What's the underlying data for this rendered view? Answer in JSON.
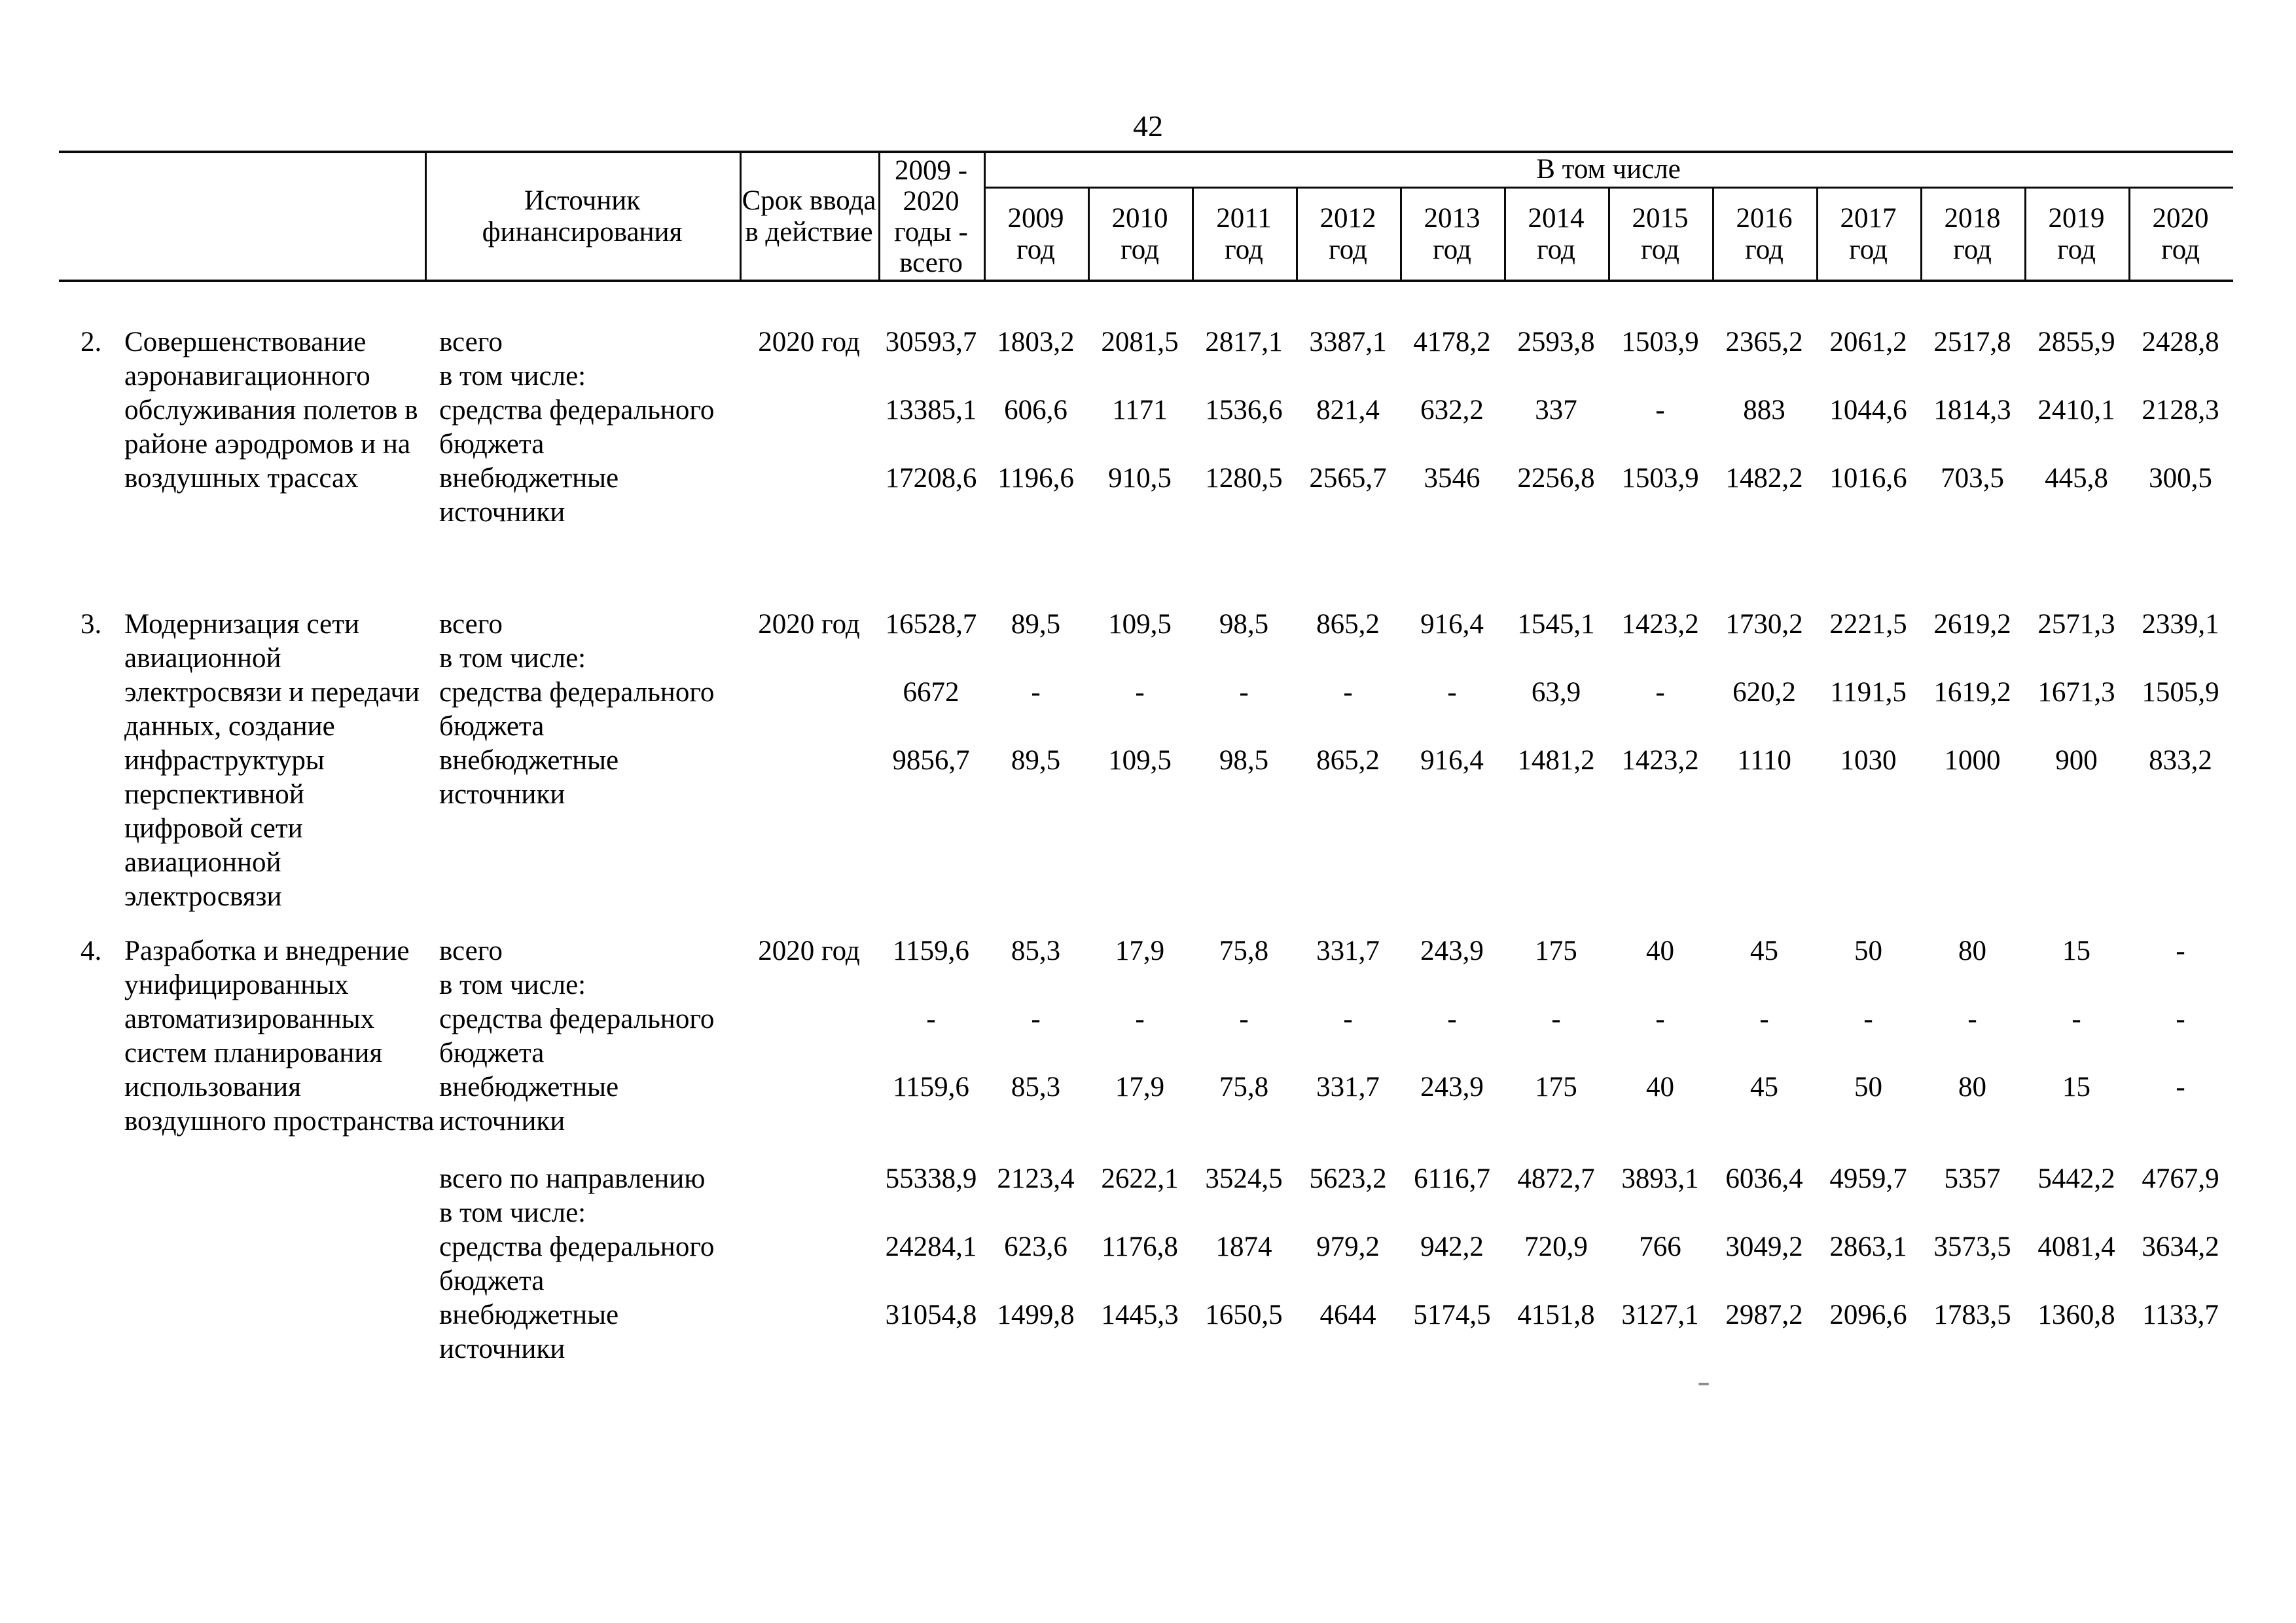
{
  "page": {
    "number": "42"
  },
  "header": {
    "source": "Источник\nфинансирования",
    "srok": "Срок ввода\nв действие",
    "total": "2009 -\n2020\nгоды -\nвсего",
    "including": "В том числе",
    "year_word": "год",
    "years": [
      "2009",
      "2010",
      "2011",
      "2012",
      "2013",
      "2014",
      "2015",
      "2016",
      "2017",
      "2018",
      "2019",
      "2020"
    ]
  },
  "body": {
    "groups": [
      {
        "lines": [
          [
            "2.",
            "Совершенствование",
            "всего",
            "2020 год",
            "30593,7",
            "1803,2",
            "2081,5",
            "2817,1",
            "3387,1",
            "4178,2",
            "2593,8",
            "1503,9",
            "2365,2",
            "2061,2",
            "2517,8",
            "2855,9",
            "2428,8"
          ],
          [
            "",
            "аэронавигационного",
            "в том числе:",
            "",
            "",
            "",
            "",
            "",
            "",
            "",
            "",
            "",
            "",
            "",
            "",
            "",
            ""
          ],
          [
            "",
            "обслуживания полетов в",
            "средства федерального",
            "",
            "13385,1",
            "606,6",
            "1171",
            "1536,6",
            "821,4",
            "632,2",
            "337",
            "-",
            "883",
            "1044,6",
            "1814,3",
            "2410,1",
            "2128,3"
          ],
          [
            "",
            "районе аэродромов и на",
            "бюджета",
            "",
            "",
            "",
            "",
            "",
            "",
            "",
            "",
            "",
            "",
            "",
            "",
            "",
            ""
          ],
          [
            "",
            "воздушных трассах",
            "внебюджетные",
            "",
            "17208,6",
            "1196,6",
            "910,5",
            "1280,5",
            "2565,7",
            "3546",
            "2256,8",
            "1503,9",
            "1482,2",
            "1016,6",
            "703,5",
            "445,8",
            "300,5"
          ],
          [
            "",
            "",
            "источники",
            "",
            "",
            "",
            "",
            "",
            "",
            "",
            "",
            "",
            "",
            "",
            "",
            "",
            ""
          ]
        ]
      },
      {
        "lines": [
          [
            "3.",
            "Модернизация сети",
            "всего",
            "2020 год",
            "16528,7",
            "89,5",
            "109,5",
            "98,5",
            "865,2",
            "916,4",
            "1545,1",
            "1423,2",
            "1730,2",
            "2221,5",
            "2619,2",
            "2571,3",
            "2339,1"
          ],
          [
            "",
            "авиационной",
            "в том числе:",
            "",
            "",
            "",
            "",
            "",
            "",
            "",
            "",
            "",
            "",
            "",
            "",
            "",
            ""
          ],
          [
            "",
            "электросвязи и передачи",
            "средства федерального",
            "",
            "6672",
            "-",
            "-",
            "-",
            "-",
            "-",
            "63,9",
            "-",
            "620,2",
            "1191,5",
            "1619,2",
            "1671,3",
            "1505,9"
          ],
          [
            "",
            "данных, создание",
            "бюджета",
            "",
            "",
            "",
            "",
            "",
            "",
            "",
            "",
            "",
            "",
            "",
            "",
            "",
            ""
          ],
          [
            "",
            "инфраструктуры",
            "внебюджетные",
            "",
            "9856,7",
            "89,5",
            "109,5",
            "98,5",
            "865,2",
            "916,4",
            "1481,2",
            "1423,2",
            "1110",
            "1030",
            "1000",
            "900",
            "833,2"
          ],
          [
            "",
            "перспективной",
            "источники",
            "",
            "",
            "",
            "",
            "",
            "",
            "",
            "",
            "",
            "",
            "",
            "",
            "",
            ""
          ],
          [
            "",
            "цифровой сети",
            "",
            "",
            "",
            "",
            "",
            "",
            "",
            "",
            "",
            "",
            "",
            "",
            "",
            "",
            ""
          ],
          [
            "",
            "авиационной",
            "",
            "",
            "",
            "",
            "",
            "",
            "",
            "",
            "",
            "",
            "",
            "",
            "",
            "",
            ""
          ],
          [
            "",
            "электросвязи",
            "",
            "",
            "",
            "",
            "",
            "",
            "",
            "",
            "",
            "",
            "",
            "",
            "",
            "",
            ""
          ]
        ]
      },
      {
        "lines": [
          [
            "4.",
            "Разработка и внедрение",
            "всего",
            "2020 год",
            "1159,6",
            "85,3",
            "17,9",
            "75,8",
            "331,7",
            "243,9",
            "175",
            "40",
            "45",
            "50",
            "80",
            "15",
            "-"
          ],
          [
            "",
            "унифицированных",
            "в том числе:",
            "",
            "",
            "",
            "",
            "",
            "",
            "",
            "",
            "",
            "",
            "",
            "",
            "",
            ""
          ],
          [
            "",
            "автоматизированных",
            "средства федерального",
            "",
            "-",
            "-",
            "-",
            "-",
            "-",
            "-",
            "-",
            "-",
            "-",
            "-",
            "-",
            "-",
            "-"
          ],
          [
            "",
            "систем планирования",
            "бюджета",
            "",
            "",
            "",
            "",
            "",
            "",
            "",
            "",
            "",
            "",
            "",
            "",
            "",
            ""
          ],
          [
            "",
            "использования",
            "внебюджетные",
            "",
            "1159,6",
            "85,3",
            "17,9",
            "75,8",
            "331,7",
            "243,9",
            "175",
            "40",
            "45",
            "50",
            "80",
            "15",
            "-"
          ],
          [
            "",
            "воздушного пространства",
            "источники",
            "",
            "",
            "",
            "",
            "",
            "",
            "",
            "",
            "",
            "",
            "",
            "",
            "",
            ""
          ]
        ]
      },
      {
        "lines": [
          [
            "",
            "",
            "всего по направлению",
            "",
            "55338,9",
            "2123,4",
            "2622,1",
            "3524,5",
            "5623,2",
            "6116,7",
            "4872,7",
            "3893,1",
            "6036,4",
            "4959,7",
            "5357",
            "5442,2",
            "4767,9"
          ],
          [
            "",
            "",
            "в том числе:",
            "",
            "",
            "",
            "",
            "",
            "",
            "",
            "",
            "",
            "",
            "",
            "",
            "",
            ""
          ],
          [
            "",
            "",
            "средства федерального",
            "",
            "24284,1",
            "623,6",
            "1176,8",
            "1874",
            "979,2",
            "942,2",
            "720,9",
            "766",
            "3049,2",
            "2863,1",
            "3573,5",
            "4081,4",
            "3634,2"
          ],
          [
            "",
            "",
            "бюджета",
            "",
            "",
            "",
            "",
            "",
            "",
            "",
            "",
            "",
            "",
            "",
            "",
            "",
            ""
          ],
          [
            "",
            "",
            "внебюджетные",
            "",
            "31054,8",
            "1499,8",
            "1445,3",
            "1650,5",
            "4644",
            "5174,5",
            "4151,8",
            "3127,1",
            "2987,2",
            "2096,6",
            "1783,5",
            "1360,8",
            "1133,7"
          ],
          [
            "",
            "",
            "источники",
            "",
            "",
            "",
            "",
            "",
            "",
            "",
            "",
            "",
            "",
            "",
            "",
            "",
            ""
          ]
        ]
      }
    ]
  }
}
